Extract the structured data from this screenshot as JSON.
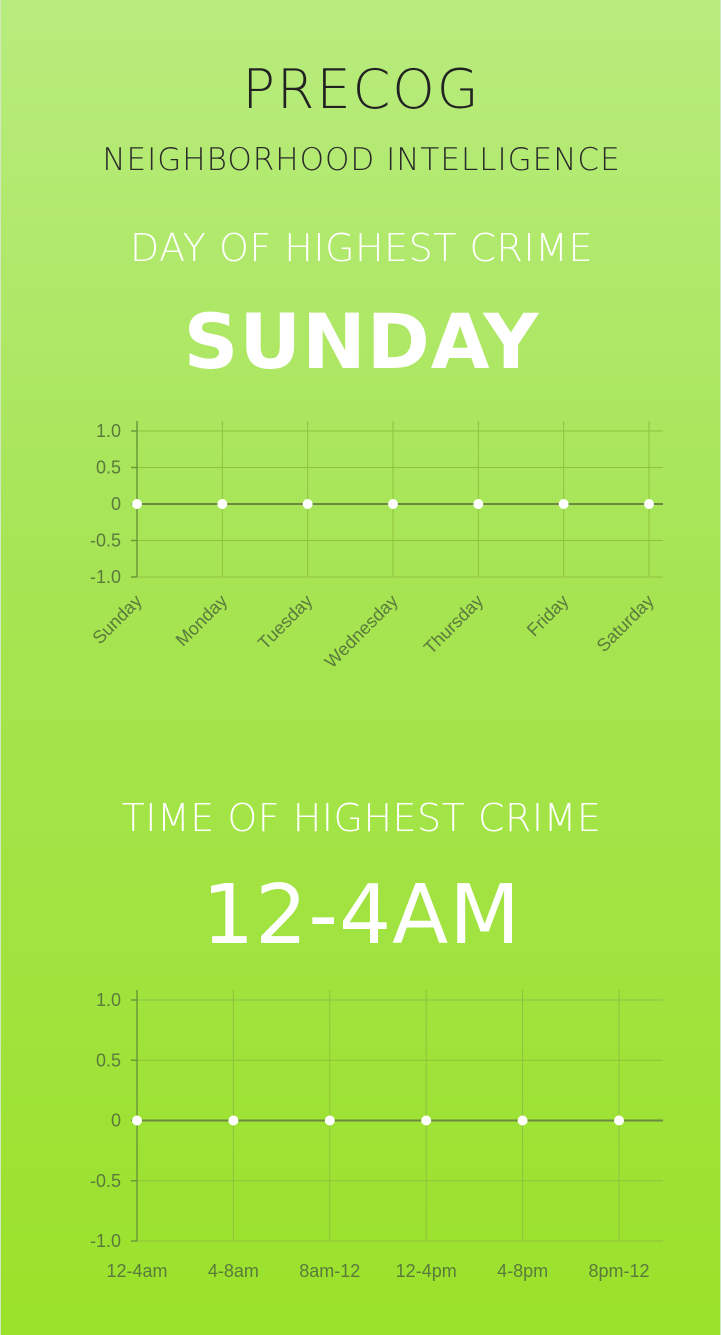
{
  "header": {
    "title": "PRECOG",
    "subtitle": "NEIGHBORHOOD INTELLIGENCE"
  },
  "day_section": {
    "heading": "DAY OF HIGHEST CRIME",
    "value": "SUNDAY"
  },
  "time_section": {
    "heading": "TIME OF HIGHEST CRIME",
    "value": "12-4AM"
  },
  "colors": {
    "background_top": "#b8ec7e",
    "background_bottom": "#9be22a",
    "headline_text": "#ffffff",
    "brand_text": "#222222",
    "point": "#ffffff"
  },
  "chart_data": [
    {
      "type": "line",
      "categories": [
        "Sunday",
        "Monday",
        "Tuesday",
        "Wednesday",
        "Thursday",
        "Friday",
        "Saturday"
      ],
      "series": [
        {
          "values": [
            0,
            0,
            0,
            0,
            0,
            0,
            0
          ]
        }
      ],
      "yticks": [
        "1.0",
        "0.5",
        "0",
        "-0.5",
        "-1.0"
      ],
      "ylim": [
        -1,
        1
      ],
      "grid": true,
      "x_label_rotation": "diagonal"
    },
    {
      "type": "line",
      "categories": [
        "12-4am",
        "4-8am",
        "8am-12",
        "12-4pm",
        "4-8pm",
        "8pm-12"
      ],
      "series": [
        {
          "values": [
            0,
            0,
            0,
            0,
            0,
            0
          ]
        }
      ],
      "yticks": [
        "1.0",
        "0.5",
        "0",
        "-0.5",
        "-1.0"
      ],
      "ylim": [
        -1,
        1
      ],
      "grid": true,
      "x_label_rotation": "none"
    }
  ]
}
